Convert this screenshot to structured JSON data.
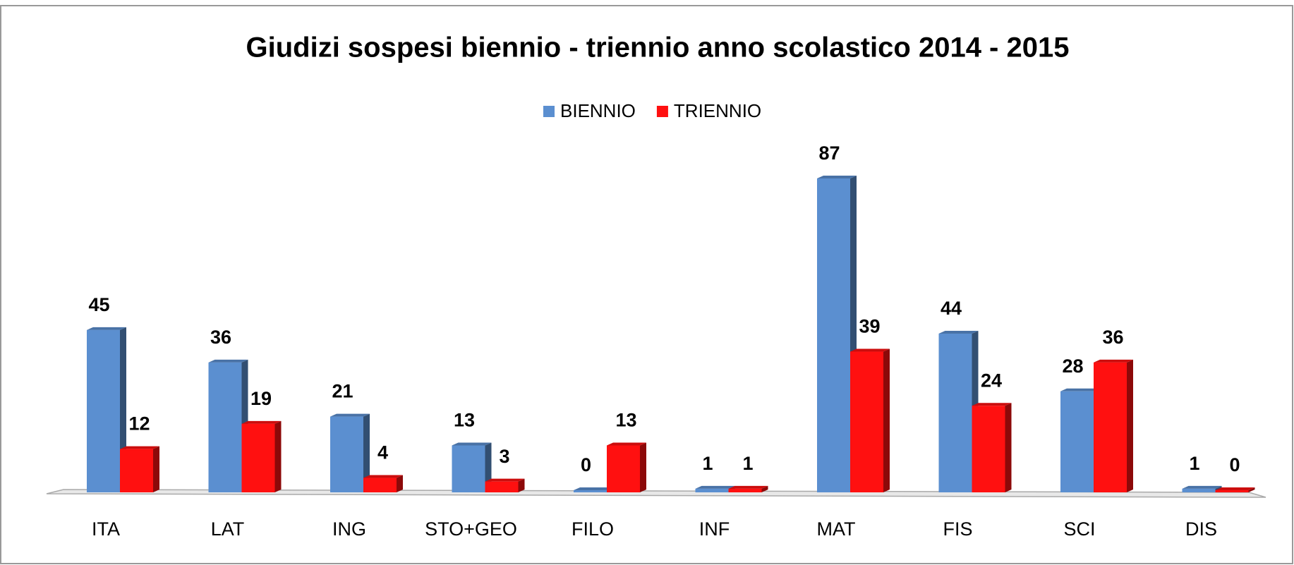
{
  "chart_data": {
    "type": "bar3d",
    "title": "Giudizi sospesi  biennio - triennio anno scolastico 2014 - 2015",
    "categories": [
      "ITA",
      "LAT",
      "ING",
      "STO+GEO",
      "FILO",
      "INF",
      "MAT",
      "FIS",
      "SCI",
      "DIS"
    ],
    "series": [
      {
        "name": "BIENNIO",
        "color": "#5b8fd0",
        "values": [
          45,
          36,
          21,
          13,
          0,
          1,
          87,
          44,
          28,
          1
        ]
      },
      {
        "name": "TRIENNIO",
        "color": "#ff1010",
        "values": [
          12,
          19,
          4,
          3,
          13,
          1,
          39,
          24,
          36,
          0
        ]
      }
    ],
    "legend": "top"
  }
}
